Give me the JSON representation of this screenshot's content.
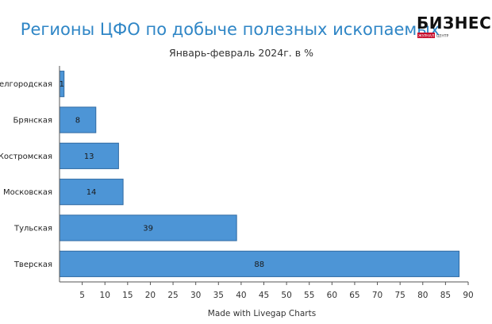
{
  "chart_data": {
    "type": "bar",
    "orientation": "horizontal",
    "title": "Регионы ЦФО по добыче полезных ископаемых",
    "subtitle": "Январь-февраль 2024г. в %",
    "xlabel": "Made with Livegap Charts",
    "categories": [
      "Белгородская",
      "Брянская",
      "Костромская",
      "Московская",
      "Тульская",
      "Тверская"
    ],
    "values": [
      1,
      8,
      13,
      14,
      39,
      88
    ],
    "xlim": [
      0,
      90
    ],
    "xticks": [
      5,
      10,
      15,
      20,
      25,
      30,
      35,
      40,
      45,
      50,
      55,
      60,
      65,
      70,
      75,
      80,
      85,
      90
    ],
    "grid": false,
    "legend": "none",
    "bar_color": "#4d95d6"
  },
  "logo": {
    "main": "БИЗНЕС",
    "sub_red": "ЖУРНАЛ",
    "sub": "ЦЕНТР"
  }
}
